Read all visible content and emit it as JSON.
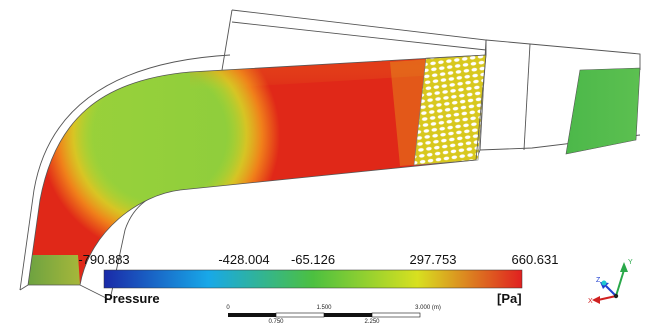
{
  "legend": {
    "title": "Pressure",
    "unit": "[Pa]",
    "ticks": [
      "-790.883",
      "-428.004",
      "-65.126",
      "297.753",
      "660.631"
    ],
    "colors": [
      "#1a2aa8",
      "#18a8e8",
      "#4cc040",
      "#d8e020",
      "#e02020"
    ]
  },
  "scale_bar": {
    "top_labels": [
      "0",
      "1.500",
      "3.000 (m)"
    ],
    "bottom_labels": [
      "0.750",
      "2.250"
    ]
  },
  "triad": {
    "axes": [
      "Y",
      "Z",
      "X"
    ],
    "colors": {
      "Y": "#2aa84a",
      "Z": "#2040d0",
      "X": "#d02020"
    }
  }
}
